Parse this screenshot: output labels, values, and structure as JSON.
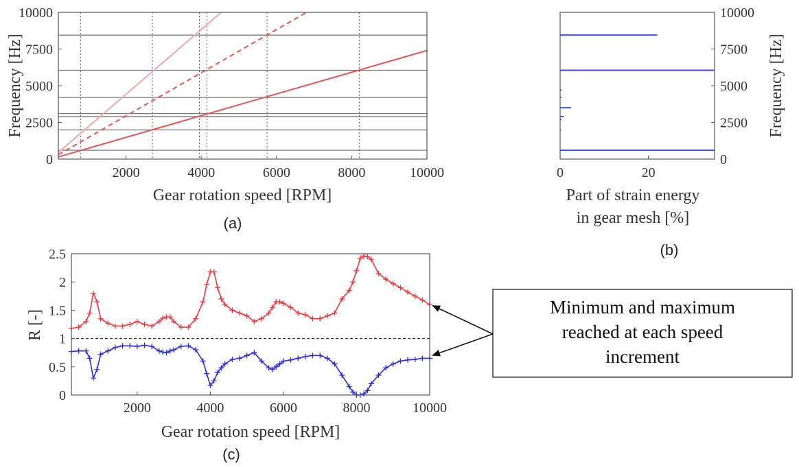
{
  "chart_data": [
    {
      "id": "a",
      "type": "line",
      "caption": "(a)",
      "xlabel": "Gear rotation speed [RPM]",
      "ylabel": "Frequency [Hz]",
      "xlim": [
        200,
        10000
      ],
      "ylim": [
        0,
        10000
      ],
      "xticks": [
        "2000",
        "4000",
        "6000",
        "8000",
        "10000"
      ],
      "yticks": [
        "0",
        "2500",
        "5000",
        "7500",
        "10000"
      ],
      "natural_frequencies": [
        600,
        1990,
        2900,
        3100,
        4200,
        6050,
        8450
      ],
      "series": [
        {
          "style": "solid",
          "color": "#e05555",
          "x": [
            200,
            10000
          ],
          "y": [
            150,
            7400
          ]
        },
        {
          "style": "dashed",
          "color": "#e05555",
          "x": [
            200,
            6800
          ],
          "y": [
            300,
            10000
          ]
        },
        {
          "style": "solid",
          "color": "#f0a6a6",
          "x": [
            200,
            4530
          ],
          "y": [
            450,
            10000
          ]
        }
      ],
      "crossing_speeds": [
        790,
        2700,
        3950,
        4150,
        5750,
        8200
      ]
    },
    {
      "id": "b",
      "type": "bar",
      "orientation": "horizontal",
      "caption": "(b)",
      "xlabel": "Part of strain energy\nin gear mesh [%]",
      "xlabel_lines": [
        "Part of strain energy",
        "in gear mesh [%]"
      ],
      "ylabel": "Frequency [Hz]",
      "xlim": [
        0,
        35
      ],
      "ylim": [
        0,
        10000
      ],
      "xticks": [
        "0",
        "20"
      ],
      "yticks": [
        "0",
        "2500",
        "5000",
        "7500",
        "10000"
      ],
      "bars": [
        {
          "y": 600,
          "value": 35
        },
        {
          "y": 1990,
          "value": 0.2
        },
        {
          "y": 2700,
          "value": 0.3
        },
        {
          "y": 2900,
          "value": 0.8
        },
        {
          "y": 3500,
          "value": 2.5
        },
        {
          "y": 4200,
          "value": 0.3
        },
        {
          "y": 4700,
          "value": 0.3
        },
        {
          "y": 6050,
          "value": 35
        },
        {
          "y": 8450,
          "value": 22
        }
      ]
    },
    {
      "id": "c",
      "type": "line",
      "caption": "(c)",
      "xlabel": "Gear rotation speed [RPM]",
      "ylabel": "R [-]",
      "xlim": [
        200,
        10000
      ],
      "ylim": [
        0,
        2.5
      ],
      "xticks": [
        "2000",
        "4000",
        "6000",
        "8000",
        "10000"
      ],
      "yticks": [
        "0",
        "0.5",
        "1",
        "1.5",
        "2",
        "2.5"
      ],
      "reference_line": 1,
      "series": [
        {
          "role": "max",
          "color": "#e8383d",
          "x": [
            200,
            400,
            600,
            700,
            800,
            900,
            1000,
            1200,
            1400,
            1600,
            1800,
            2000,
            2200,
            2400,
            2600,
            2700,
            2800,
            2900,
            3000,
            3200,
            3400,
            3600,
            3800,
            3900,
            4000,
            4100,
            4200,
            4300,
            4400,
            4600,
            4800,
            5000,
            5200,
            5400,
            5600,
            5700,
            5800,
            5900,
            6000,
            6200,
            6400,
            6600,
            6800,
            7000,
            7200,
            7400,
            7600,
            7800,
            7900,
            8000,
            8100,
            8200,
            8300,
            8400,
            8600,
            8800,
            9000,
            9200,
            9400,
            9600,
            9800,
            10000
          ],
          "y": [
            1.18,
            1.2,
            1.3,
            1.45,
            1.8,
            1.65,
            1.35,
            1.27,
            1.22,
            1.22,
            1.25,
            1.3,
            1.25,
            1.22,
            1.3,
            1.36,
            1.38,
            1.38,
            1.3,
            1.2,
            1.2,
            1.35,
            1.65,
            1.95,
            2.18,
            2.18,
            1.9,
            1.7,
            1.6,
            1.5,
            1.45,
            1.4,
            1.3,
            1.35,
            1.45,
            1.55,
            1.65,
            1.65,
            1.62,
            1.55,
            1.45,
            1.42,
            1.35,
            1.35,
            1.4,
            1.45,
            1.7,
            1.85,
            2.0,
            2.2,
            2.42,
            2.46,
            2.45,
            2.4,
            2.15,
            2.05,
            1.97,
            1.9,
            1.82,
            1.75,
            1.68,
            1.6
          ]
        },
        {
          "role": "min",
          "color": "#2b2bd6",
          "x": [
            200,
            400,
            600,
            700,
            800,
            900,
            1000,
            1200,
            1400,
            1600,
            1800,
            2000,
            2200,
            2400,
            2600,
            2700,
            2800,
            2900,
            3000,
            3200,
            3400,
            3600,
            3800,
            3900,
            4000,
            4100,
            4200,
            4300,
            4400,
            4600,
            4800,
            5000,
            5200,
            5400,
            5600,
            5700,
            5800,
            5900,
            6000,
            6200,
            6400,
            6600,
            6800,
            7000,
            7200,
            7400,
            7600,
            7800,
            7900,
            8000,
            8100,
            8200,
            8300,
            8400,
            8600,
            8800,
            9000,
            9200,
            9400,
            9600,
            9800,
            10000
          ],
          "y": [
            0.77,
            0.78,
            0.78,
            0.65,
            0.3,
            0.45,
            0.72,
            0.78,
            0.84,
            0.87,
            0.87,
            0.86,
            0.88,
            0.86,
            0.78,
            0.76,
            0.75,
            0.78,
            0.8,
            0.86,
            0.87,
            0.8,
            0.6,
            0.38,
            0.17,
            0.25,
            0.4,
            0.48,
            0.55,
            0.63,
            0.65,
            0.7,
            0.75,
            0.6,
            0.48,
            0.45,
            0.5,
            0.55,
            0.6,
            0.62,
            0.65,
            0.68,
            0.7,
            0.7,
            0.65,
            0.55,
            0.35,
            0.15,
            0.05,
            0.0,
            0.0,
            0.02,
            0.08,
            0.2,
            0.35,
            0.48,
            0.55,
            0.6,
            0.62,
            0.63,
            0.65,
            0.65
          ]
        }
      ]
    }
  ],
  "annotation": {
    "lines": [
      "Minimum and maximum",
      "reached at each speed",
      "increment"
    ]
  }
}
